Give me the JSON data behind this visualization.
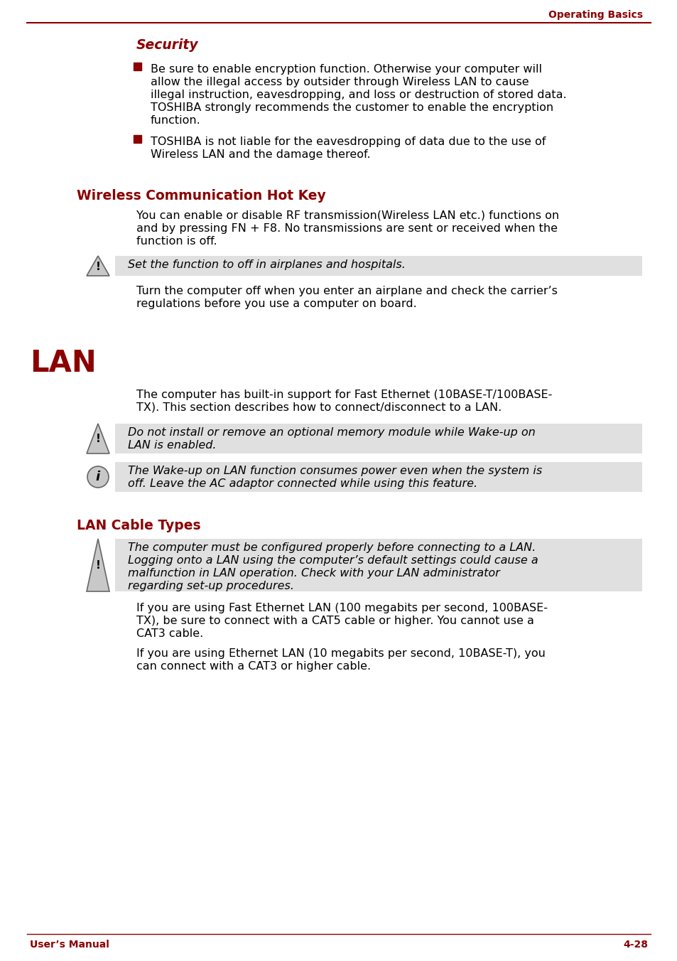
{
  "bg_color": "#ffffff",
  "header_color": "#8b0000",
  "text_color": "#000000",
  "line_color": "#8b0000",
  "header_text": "Operating Basics",
  "footer_left": "User’s Manual",
  "footer_right": "4-28",
  "section_security": "Security",
  "bullet1_lines": [
    "Be sure to enable encryption function. Otherwise your computer will",
    "allow the illegal access by outsider through Wireless LAN to cause",
    "illegal instruction, eavesdropping, and loss or destruction of stored data.",
    "TOSHIBA strongly recommends the customer to enable the encryption",
    "function."
  ],
  "bullet2_lines": [
    "TOSHIBA is not liable for the eavesdropping of data due to the use of",
    "Wireless LAN and the damage thereof."
  ],
  "section_wireless": "Wireless Communication Hot Key",
  "wireless_para_lines": [
    "You can enable or disable RF transmission(Wireless LAN etc.) functions on",
    "and by pressing FN + F8. No transmissions are sent or received when the",
    "function is off."
  ],
  "wireless_bold_segment": "FN + F8",
  "wireless_note": "Set the function to off in airplanes and hospitals.",
  "wireless_note2_lines": [
    "Turn the computer off when you enter an airplane and check the carrier’s",
    "regulations before you use a computer on board."
  ],
  "section_lan": "LAN",
  "lan_para_lines": [
    "The computer has built-in support for Fast Ethernet (10BASE-T/100BASE-",
    "TX). This section describes how to connect/disconnect to a LAN."
  ],
  "lan_warning_lines": [
    "Do not install or remove an optional memory module while Wake-up on",
    "LAN is enabled."
  ],
  "lan_info_lines": [
    "The Wake-up on LAN function consumes power even when the system is",
    "off. Leave the AC adaptor connected while using this feature."
  ],
  "section_lan_cable": "LAN Cable Types",
  "cable_warning_lines": [
    "The computer must be configured properly before connecting to a LAN.",
    "Logging onto a LAN using the computer’s default settings could cause a",
    "malfunction in LAN operation. Check with your LAN administrator",
    "regarding set-up procedures."
  ],
  "cable_para1_lines": [
    "If you are using Fast Ethernet LAN (100 megabits per second, 100BASE-",
    "TX), be sure to connect with a CAT5 cable or higher. You cannot use a",
    "CAT3 cable."
  ],
  "cable_para2_lines": [
    "If you are using Ethernet LAN (10 megabits per second, 10BASE-T), you",
    "can connect with a CAT3 or higher cable."
  ]
}
